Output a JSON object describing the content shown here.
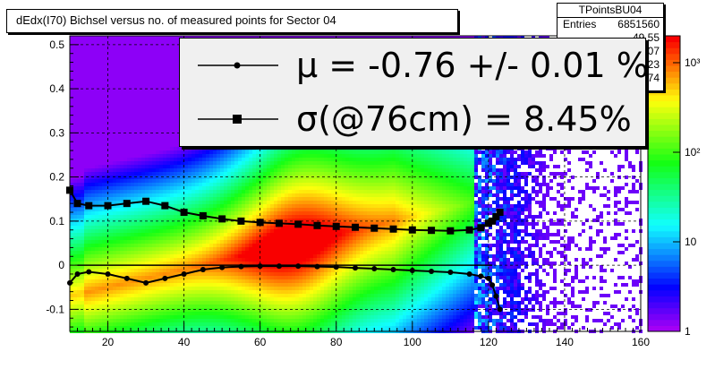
{
  "title": "dEdx(I70) Bichsel versus no. of measured points for Sector 04",
  "stats": {
    "name": "TPointsBU04",
    "rows": [
      {
        "key": "Entries",
        "value": "6851560"
      },
      {
        "key": "",
        "value": "49.55"
      },
      {
        "key": "",
        "value": "0.04407"
      },
      {
        "key": "",
        "value": "24.23"
      },
      {
        "key": "",
        "value": "0.1374"
      }
    ]
  },
  "legend": {
    "mu": "μ  = -0.76 +/-  0.01 %",
    "sigma": "σ(@76cm) =  8.45%"
  },
  "chart_data": {
    "type": "heatmap",
    "title": "dEdx(I70) Bichsel versus no. of measured points for Sector 04",
    "xlim": [
      10,
      160
    ],
    "ylim": [
      -0.15,
      0.52
    ],
    "xticks": [
      "20",
      "40",
      "60",
      "80",
      "100",
      "120",
      "140",
      "160"
    ],
    "yticks": [
      "-0.1",
      "0",
      "0.1",
      "0.2",
      "0.3",
      "0.4",
      "0.5"
    ],
    "zscale": "log",
    "zticks": [
      "1",
      "10",
      "10²",
      "10³"
    ],
    "grid": true,
    "series": [
      {
        "name": "μ",
        "marker": "circle",
        "x": [
          10,
          12,
          15,
          20,
          25,
          30,
          35,
          40,
          45,
          50,
          55,
          60,
          65,
          70,
          75,
          80,
          85,
          90,
          95,
          100,
          105,
          110,
          115,
          118,
          120,
          121,
          122,
          123
        ],
        "y": [
          -0.04,
          -0.02,
          -0.015,
          -0.02,
          -0.03,
          -0.04,
          -0.03,
          -0.02,
          -0.01,
          -0.005,
          -0.003,
          -0.002,
          -0.002,
          -0.002,
          -0.003,
          -0.004,
          -0.006,
          -0.008,
          -0.01,
          -0.012,
          -0.014,
          -0.016,
          -0.02,
          -0.025,
          -0.03,
          -0.045,
          -0.07,
          -0.1
        ]
      },
      {
        "name": "σ",
        "marker": "square",
        "x": [
          10,
          12,
          15,
          20,
          25,
          30,
          35,
          40,
          45,
          50,
          55,
          60,
          65,
          70,
          75,
          80,
          85,
          90,
          95,
          100,
          105,
          110,
          115,
          118,
          120,
          121,
          122,
          123
        ],
        "y": [
          0.17,
          0.14,
          0.135,
          0.135,
          0.14,
          0.145,
          0.135,
          0.12,
          0.112,
          0.105,
          0.1,
          0.097,
          0.095,
          0.093,
          0.09,
          0.088,
          0.086,
          0.084,
          0.082,
          0.08,
          0.079,
          0.078,
          0.08,
          0.085,
          0.095,
          0.1,
          0.11,
          0.12
        ]
      }
    ]
  }
}
